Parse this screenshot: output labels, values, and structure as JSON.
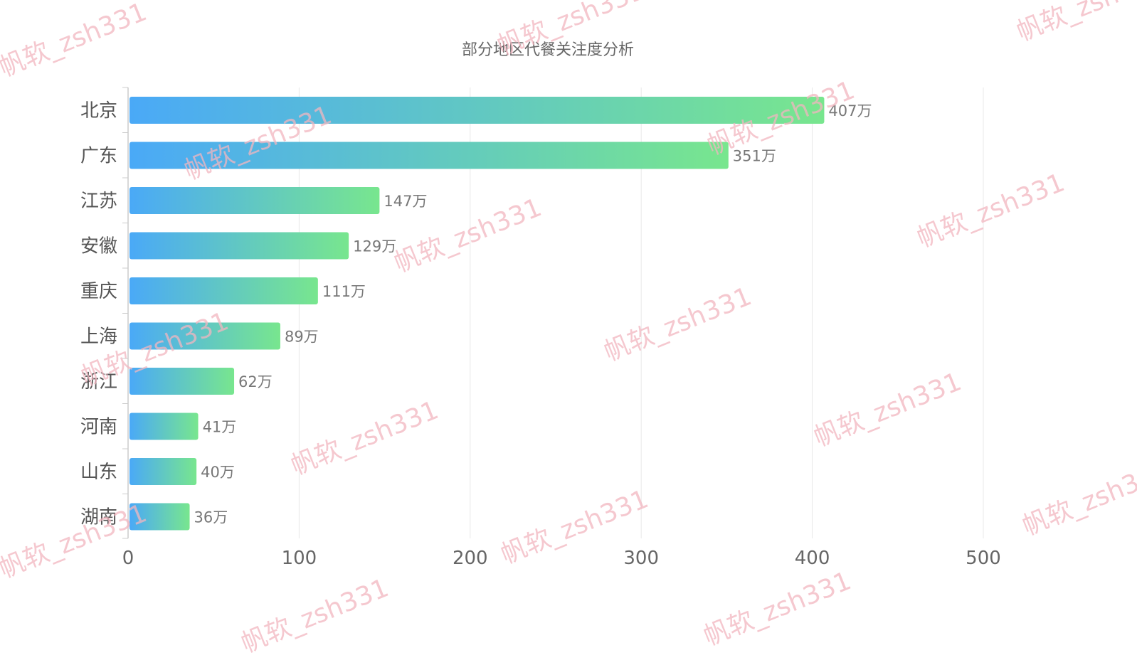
{
  "watermark_text": "帆软_zsh331",
  "chart_data": {
    "type": "bar",
    "orientation": "horizontal",
    "title": "部分地区代餐关注度分析",
    "categories": [
      "北京",
      "广东",
      "江苏",
      "安徽",
      "重庆",
      "上海",
      "浙江",
      "河南",
      "山东",
      "湖南"
    ],
    "values": [
      407,
      351,
      147,
      129,
      111,
      89,
      62,
      41,
      40,
      36
    ],
    "value_suffix": "万",
    "xlim": [
      0,
      500
    ],
    "xticks": [
      0,
      100,
      200,
      300,
      400,
      500
    ],
    "grid": true,
    "legend": "none",
    "colors": {
      "gradient_start": "#4aa9f7",
      "gradient_end": "#78e68e",
      "grid": "#e8e8e8",
      "label": "#666666"
    }
  }
}
